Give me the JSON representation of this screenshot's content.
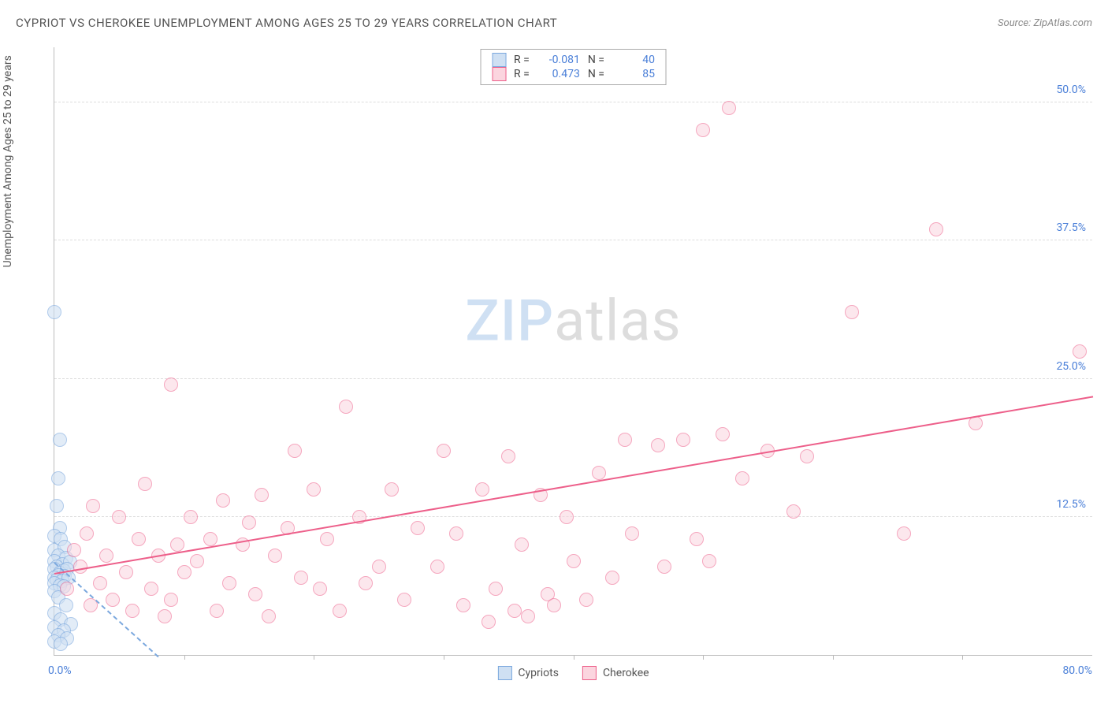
{
  "header": {
    "title": "CYPRIOT VS CHEROKEE UNEMPLOYMENT AMONG AGES 25 TO 29 YEARS CORRELATION CHART",
    "source_prefix": "Source: ",
    "source_name": "ZipAtlas.com"
  },
  "watermark": {
    "part1": "ZIP",
    "part2": "atlas"
  },
  "chart": {
    "type": "scatter",
    "y_axis_label": "Unemployment Among Ages 25 to 29 years",
    "xlim": [
      0,
      80
    ],
    "ylim": [
      0,
      55
    ],
    "y_ticks": [
      {
        "value": 12.5,
        "label": "12.5%"
      },
      {
        "value": 25.0,
        "label": "25.0%"
      },
      {
        "value": 37.5,
        "label": "37.5%"
      },
      {
        "value": 50.0,
        "label": "50.0%"
      }
    ],
    "y_tick_color": "#4a7fd8",
    "x_ticks_minor": [
      10,
      20,
      30,
      40,
      50,
      60,
      70
    ],
    "x_axis_min_label": "0.0%",
    "x_axis_max_label": "80.0%",
    "x_label_color": "#4a7fd8",
    "grid_color": "#dddddd",
    "background_color": "#ffffff",
    "marker_radius": 9,
    "marker_stroke_width": 1.5,
    "series": [
      {
        "name": "Cypriots",
        "fill_color": "#cfe0f3",
        "stroke_color": "#7ba8de",
        "fill_opacity": 0.6,
        "R": "-0.081",
        "N": "40",
        "trend": {
          "x1": 0,
          "y1": 8.5,
          "x2": 8,
          "y2": 0,
          "dash": true,
          "color": "#7ba8de"
        },
        "points": [
          [
            0.0,
            31.0
          ],
          [
            0.4,
            19.5
          ],
          [
            0.3,
            16.0
          ],
          [
            0.2,
            13.5
          ],
          [
            0.4,
            11.5
          ],
          [
            0.0,
            10.8
          ],
          [
            0.5,
            10.5
          ],
          [
            0.0,
            9.5
          ],
          [
            0.8,
            9.8
          ],
          [
            0.3,
            9.0
          ],
          [
            0.9,
            8.8
          ],
          [
            0.0,
            8.5
          ],
          [
            0.6,
            8.2
          ],
          [
            0.2,
            8.0
          ],
          [
            1.2,
            8.4
          ],
          [
            0.0,
            7.8
          ],
          [
            0.7,
            7.6
          ],
          [
            0.4,
            7.4
          ],
          [
            1.0,
            7.8
          ],
          [
            0.3,
            7.2
          ],
          [
            0.0,
            7.0
          ],
          [
            0.8,
            7.1
          ],
          [
            0.2,
            6.8
          ],
          [
            0.6,
            6.7
          ],
          [
            0.0,
            6.5
          ],
          [
            1.1,
            7.0
          ],
          [
            0.4,
            6.3
          ],
          [
            0.7,
            6.2
          ],
          [
            0.0,
            5.8
          ],
          [
            0.3,
            5.2
          ],
          [
            0.9,
            4.5
          ],
          [
            0.0,
            3.8
          ],
          [
            0.5,
            3.2
          ],
          [
            1.3,
            2.8
          ],
          [
            0.0,
            2.5
          ],
          [
            0.7,
            2.2
          ],
          [
            0.3,
            1.8
          ],
          [
            1.0,
            1.5
          ],
          [
            0.0,
            1.2
          ],
          [
            0.5,
            1.0
          ]
        ]
      },
      {
        "name": "Cherokee",
        "fill_color": "#fbd5df",
        "stroke_color": "#ed5f8a",
        "fill_opacity": 0.55,
        "R": "0.473",
        "N": "85",
        "trend": {
          "x1": 0,
          "y1": 7.5,
          "x2": 80,
          "y2": 23.5,
          "dash": false,
          "color": "#ed5f8a"
        },
        "points": [
          [
            52.0,
            49.5
          ],
          [
            50.0,
            47.5
          ],
          [
            68.0,
            38.5
          ],
          [
            61.5,
            31.0
          ],
          [
            79.0,
            27.5
          ],
          [
            9.0,
            24.5
          ],
          [
            22.5,
            22.5
          ],
          [
            71.0,
            21.0
          ],
          [
            18.5,
            18.5
          ],
          [
            30.0,
            18.5
          ],
          [
            35.0,
            18.0
          ],
          [
            44.0,
            19.5
          ],
          [
            46.5,
            19.0
          ],
          [
            48.5,
            19.5
          ],
          [
            51.5,
            20.0
          ],
          [
            55.0,
            18.5
          ],
          [
            58.0,
            18.0
          ],
          [
            7.0,
            15.5
          ],
          [
            13.0,
            14.0
          ],
          [
            16.0,
            14.5
          ],
          [
            20.0,
            15.0
          ],
          [
            26.0,
            15.0
          ],
          [
            33.0,
            15.0
          ],
          [
            37.5,
            14.5
          ],
          [
            42.0,
            16.5
          ],
          [
            53.0,
            16.0
          ],
          [
            3.0,
            13.5
          ],
          [
            5.0,
            12.5
          ],
          [
            10.5,
            12.5
          ],
          [
            15.0,
            12.0
          ],
          [
            18.0,
            11.5
          ],
          [
            23.5,
            12.5
          ],
          [
            28.0,
            11.5
          ],
          [
            39.5,
            12.5
          ],
          [
            57.0,
            13.0
          ],
          [
            2.5,
            11.0
          ],
          [
            6.5,
            10.5
          ],
          [
            9.5,
            10.0
          ],
          [
            12.0,
            10.5
          ],
          [
            14.5,
            10.0
          ],
          [
            21.0,
            10.5
          ],
          [
            31.0,
            11.0
          ],
          [
            36.0,
            10.0
          ],
          [
            44.5,
            11.0
          ],
          [
            49.5,
            10.5
          ],
          [
            65.5,
            11.0
          ],
          [
            1.5,
            9.5
          ],
          [
            4.0,
            9.0
          ],
          [
            8.0,
            9.0
          ],
          [
            11.0,
            8.5
          ],
          [
            17.0,
            9.0
          ],
          [
            25.0,
            8.0
          ],
          [
            29.5,
            8.0
          ],
          [
            40.0,
            8.5
          ],
          [
            47.0,
            8.0
          ],
          [
            2.0,
            8.0
          ],
          [
            5.5,
            7.5
          ],
          [
            10.0,
            7.5
          ],
          [
            19.0,
            7.0
          ],
          [
            24.0,
            6.5
          ],
          [
            3.5,
            6.5
          ],
          [
            7.5,
            6.0
          ],
          [
            13.5,
            6.5
          ],
          [
            34.0,
            6.0
          ],
          [
            38.0,
            5.5
          ],
          [
            1.0,
            6.0
          ],
          [
            4.5,
            5.0
          ],
          [
            9.0,
            5.0
          ],
          [
            27.0,
            5.0
          ],
          [
            31.5,
            4.5
          ],
          [
            35.5,
            4.0
          ],
          [
            41.0,
            5.0
          ],
          [
            16.5,
            3.5
          ],
          [
            22.0,
            4.0
          ],
          [
            33.5,
            3.0
          ],
          [
            36.5,
            3.5
          ],
          [
            38.5,
            4.5
          ],
          [
            12.5,
            4.0
          ],
          [
            6.0,
            4.0
          ],
          [
            2.8,
            4.5
          ],
          [
            8.5,
            3.5
          ],
          [
            15.5,
            5.5
          ],
          [
            20.5,
            6.0
          ],
          [
            43.0,
            7.0
          ],
          [
            50.5,
            8.5
          ]
        ]
      }
    ],
    "legend": {
      "items": [
        {
          "label": "Cypriots",
          "swatch_fill": "#cfe0f3",
          "swatch_stroke": "#7ba8de"
        },
        {
          "label": "Cherokee",
          "swatch_fill": "#fbd5df",
          "swatch_stroke": "#ed5f8a"
        }
      ]
    },
    "stat_value_color": "#4a7fd8"
  }
}
